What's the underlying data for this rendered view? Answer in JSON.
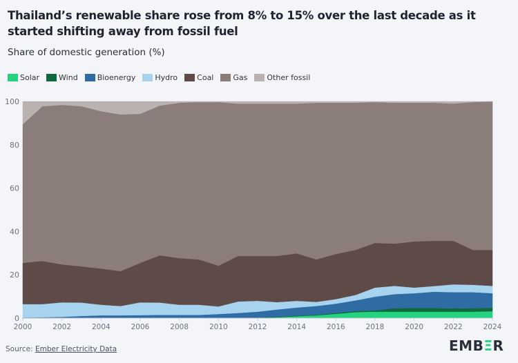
{
  "title": "Thailand’s renewable share rose from 8% to 15% over the last decade as it started shifting away from fossil fuel",
  "subtitle": "Share of domestic generation (%)",
  "footer": {
    "source_prefix": "Source: ",
    "source_link": "Ember Electricity Data",
    "logo": "EMBER"
  },
  "chart_data": {
    "type": "area",
    "stacked": true,
    "title": "",
    "xlabel": "",
    "ylabel": "",
    "ylim": [
      0,
      100
    ],
    "yticks": [
      "0",
      "20",
      "40",
      "60",
      "80",
      "100"
    ],
    "xticks": [
      "2000",
      "2002",
      "2004",
      "2006",
      "2008",
      "2010",
      "2012",
      "2014",
      "2016",
      "2018",
      "2020",
      "2022",
      "2024"
    ],
    "legend_position": "top-left",
    "x": [
      2000,
      2001,
      2002,
      2003,
      2004,
      2005,
      2006,
      2007,
      2008,
      2009,
      2010,
      2011,
      2012,
      2013,
      2014,
      2015,
      2016,
      2017,
      2018,
      2019,
      2020,
      2021,
      2022,
      2023,
      2024
    ],
    "series": [
      {
        "name": "Solar",
        "color": "#25d27f",
        "values": [
          0,
          0,
          0,
          0,
          0,
          0,
          0,
          0,
          0,
          0,
          0,
          0,
          0.1,
          0.4,
          0.9,
          1.3,
          2.0,
          2.8,
          3.0,
          3.0,
          3.0,
          3.0,
          3.0,
          3.0,
          3.2
        ]
      },
      {
        "name": "Wind",
        "color": "#10693c",
        "values": [
          0,
          0,
          0,
          0,
          0,
          0,
          0,
          0,
          0,
          0,
          0,
          0,
          0.1,
          0.2,
          0.3,
          0.3,
          0.4,
          0.5,
          0.6,
          1.6,
          1.7,
          1.7,
          1.5,
          1.6,
          1.6
        ]
      },
      {
        "name": "Bioenergy",
        "color": "#2e6ca3",
        "values": [
          0.3,
          0.4,
          0.6,
          1.0,
          1.3,
          1.3,
          1.4,
          1.5,
          1.5,
          1.5,
          1.9,
          2.4,
          2.8,
          3.4,
          3.7,
          4.0,
          4.3,
          4.9,
          6.3,
          6.5,
          6.8,
          7.5,
          7.5,
          7.4,
          6.7
        ]
      },
      {
        "name": "Hydro",
        "color": "#a7d3ef",
        "values": [
          6.2,
          6.1,
          6.7,
          6.2,
          4.9,
          4.3,
          5.9,
          5.7,
          4.7,
          4.7,
          3.5,
          5.3,
          5.0,
          3.4,
          3.1,
          1.9,
          2.1,
          2.5,
          4.2,
          3.8,
          2.6,
          2.6,
          3.6,
          3.4,
          3.4
        ]
      },
      {
        "name": "Coal",
        "color": "#5e4b48",
        "values": [
          19.0,
          19.9,
          17.5,
          16.7,
          16.7,
          16.1,
          18.2,
          21.8,
          21.5,
          20.9,
          18.8,
          21.0,
          20.7,
          21.3,
          21.9,
          19.6,
          20.8,
          20.8,
          20.6,
          19.5,
          21.3,
          20.9,
          20.1,
          16.1,
          16.6
        ]
      },
      {
        "name": "Gas",
        "color": "#8b7d7a",
        "values": [
          64.0,
          71.4,
          73.6,
          73.9,
          72.6,
          72.3,
          68.8,
          69.1,
          71.7,
          72.6,
          75.5,
          70.3,
          70.3,
          70.3,
          69.1,
          72.3,
          69.8,
          67.9,
          65.0,
          65.0,
          64.0,
          63.7,
          63.3,
          68.2,
          68.5
        ]
      },
      {
        "name": "Other fossil",
        "color": "#b9b2b1",
        "values": [
          10.5,
          2.2,
          1.6,
          2.2,
          4.5,
          6.0,
          5.7,
          1.9,
          0.6,
          0.3,
          0.3,
          1.0,
          1.0,
          1.0,
          1.0,
          0.6,
          0.6,
          0.6,
          0.3,
          0.6,
          0.6,
          0.6,
          1.0,
          0.3,
          0.0
        ]
      }
    ]
  }
}
